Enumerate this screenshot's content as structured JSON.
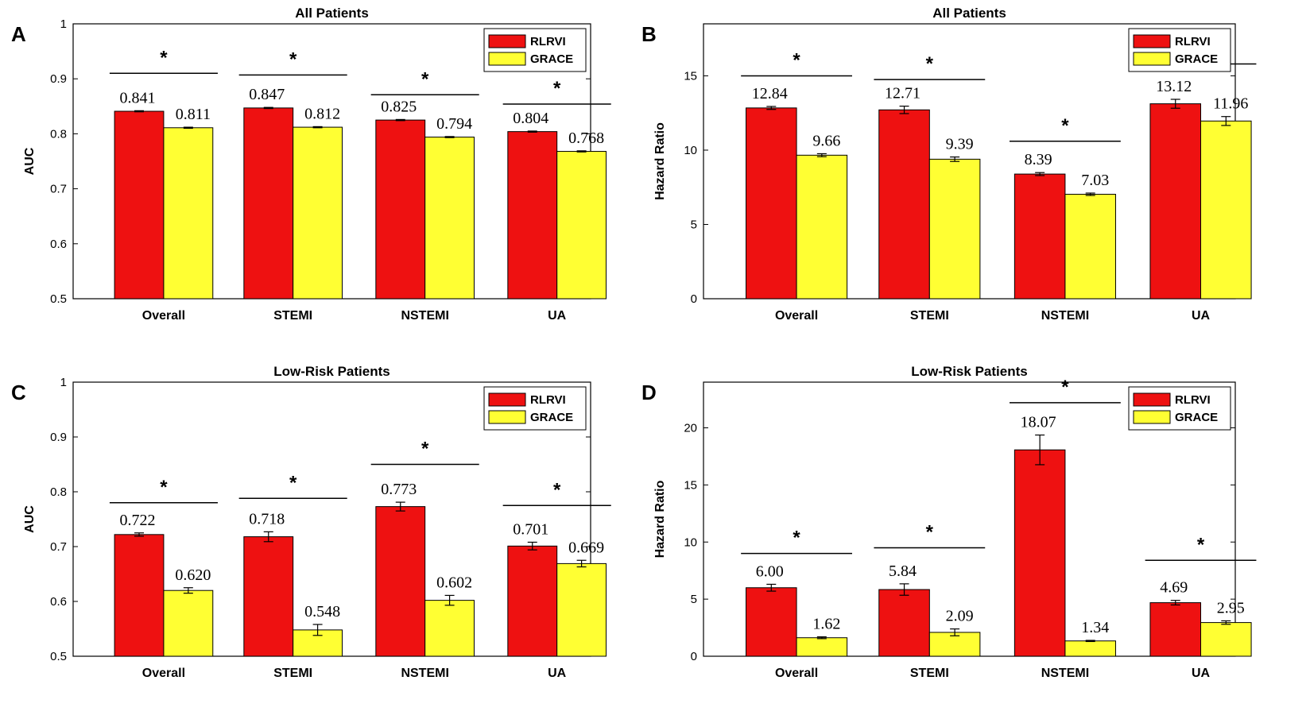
{
  "colors": {
    "RLRVI": "#ee1111",
    "GRACE": "#ffff33"
  },
  "chart_data": [
    {
      "type": "bar",
      "letter": "A",
      "title": "All Patients",
      "ylabel": "AUC",
      "xlabel": "",
      "ylim": [
        0.5,
        1
      ],
      "yticks": [
        "0.5",
        "0.6",
        "0.7",
        "0.8",
        "0.9",
        "1"
      ],
      "categories": [
        "Overall",
        "STEMI",
        "NSTEMI",
        "UA"
      ],
      "legend": [
        "RLRVI",
        "GRACE"
      ],
      "legend_position": "top-right",
      "series": [
        {
          "name": "RLRVI",
          "values": [
            0.841,
            0.847,
            0.825,
            0.804
          ],
          "labels": [
            "0.841",
            "0.847",
            "0.825",
            "0.804"
          ],
          "errors": [
            0.001,
            0.001,
            0.001,
            0.001
          ]
        },
        {
          "name": "GRACE",
          "values": [
            0.811,
            0.812,
            0.794,
            0.768
          ],
          "labels": [
            "0.811",
            "0.812",
            "0.794",
            "0.768"
          ],
          "errors": [
            0.001,
            0.001,
            0.001,
            0.001
          ]
        }
      ],
      "significance": [
        {
          "category": "Overall",
          "marker": "*",
          "level": 0.91
        },
        {
          "category": "STEMI",
          "marker": "*",
          "level": 0.907
        },
        {
          "category": "NSTEMI",
          "marker": "*",
          "level": 0.871
        },
        {
          "category": "UA",
          "marker": "*",
          "level": 0.854
        }
      ]
    },
    {
      "type": "bar",
      "letter": "B",
      "title": "All Patients",
      "ylabel": "Hazard Ratio",
      "xlabel": "",
      "ylim": [
        0,
        18.5
      ],
      "yticks": [
        "0",
        "5",
        "10",
        "15"
      ],
      "categories": [
        "Overall",
        "STEMI",
        "NSTEMI",
        "UA"
      ],
      "legend": [
        "RLRVI",
        "GRACE"
      ],
      "legend_position": "top-right",
      "series": [
        {
          "name": "RLRVI",
          "values": [
            12.84,
            12.71,
            8.39,
            13.12
          ],
          "labels": [
            "12.84",
            "12.71",
            "8.39",
            "13.12"
          ],
          "errors": [
            0.1,
            0.25,
            0.1,
            0.3
          ]
        },
        {
          "name": "GRACE",
          "values": [
            9.66,
            9.39,
            7.03,
            11.96
          ],
          "labels": [
            "9.66",
            "9.39",
            "7.03",
            "11.96"
          ],
          "errors": [
            0.1,
            0.15,
            0.08,
            0.3
          ]
        }
      ],
      "significance": [
        {
          "category": "Overall",
          "marker": "*",
          "level": 15.0
        },
        {
          "category": "STEMI",
          "marker": "*",
          "level": 14.75
        },
        {
          "category": "NSTEMI",
          "marker": "*",
          "level": 10.6
        },
        {
          "category": "UA",
          "marker": "*",
          "level": 15.8
        }
      ]
    },
    {
      "type": "bar",
      "letter": "C",
      "title": "Low-Risk Patients",
      "ylabel": "AUC",
      "xlabel": "",
      "ylim": [
        0.5,
        1
      ],
      "yticks": [
        "0.5",
        "0.6",
        "0.7",
        "0.8",
        "0.9",
        "1"
      ],
      "categories": [
        "Overall",
        "STEMI",
        "NSTEMI",
        "UA"
      ],
      "legend": [
        "RLRVI",
        "GRACE"
      ],
      "legend_position": "top-right",
      "series": [
        {
          "name": "RLRVI",
          "values": [
            0.722,
            0.718,
            0.773,
            0.701
          ],
          "labels": [
            "0.722",
            "0.718",
            "0.773",
            "0.701"
          ],
          "errors": [
            0.003,
            0.009,
            0.008,
            0.007
          ]
        },
        {
          "name": "GRACE",
          "values": [
            0.62,
            0.548,
            0.602,
            0.669
          ],
          "labels": [
            "0.620",
            "0.548",
            "0.602",
            "0.669"
          ],
          "errors": [
            0.005,
            0.01,
            0.009,
            0.006
          ]
        }
      ],
      "significance": [
        {
          "category": "Overall",
          "marker": "*",
          "level": 0.78
        },
        {
          "category": "STEMI",
          "marker": "*",
          "level": 0.788
        },
        {
          "category": "NSTEMI",
          "marker": "*",
          "level": 0.85
        },
        {
          "category": "UA",
          "marker": "*",
          "level": 0.775
        }
      ]
    },
    {
      "type": "bar",
      "letter": "D",
      "title": "Low-Risk Patients",
      "ylabel": "Hazard Ratio",
      "xlabel": "",
      "ylim": [
        0,
        24
      ],
      "yticks": [
        "0",
        "5",
        "10",
        "15",
        "20"
      ],
      "categories": [
        "Overall",
        "STEMI",
        "NSTEMI",
        "UA"
      ],
      "legend": [
        "RLRVI",
        "GRACE"
      ],
      "legend_position": "top-right",
      "series": [
        {
          "name": "RLRVI",
          "values": [
            6.0,
            5.84,
            18.07,
            4.69
          ],
          "labels": [
            "6.00",
            "5.84",
            "18.07",
            "4.69"
          ],
          "errors": [
            0.3,
            0.5,
            1.3,
            0.2
          ]
        },
        {
          "name": "GRACE",
          "values": [
            1.62,
            2.09,
            1.34,
            2.95
          ],
          "labels": [
            "1.62",
            "2.09",
            "1.34",
            "2.95"
          ],
          "errors": [
            0.08,
            0.3,
            0.05,
            0.15
          ]
        }
      ],
      "significance": [
        {
          "category": "Overall",
          "marker": "*",
          "level": 9.0
        },
        {
          "category": "STEMI",
          "marker": "*",
          "level": 9.5
        },
        {
          "category": "NSTEMI",
          "marker": "*",
          "level": 22.2
        },
        {
          "category": "UA",
          "marker": "*",
          "level": 8.4
        }
      ]
    }
  ]
}
